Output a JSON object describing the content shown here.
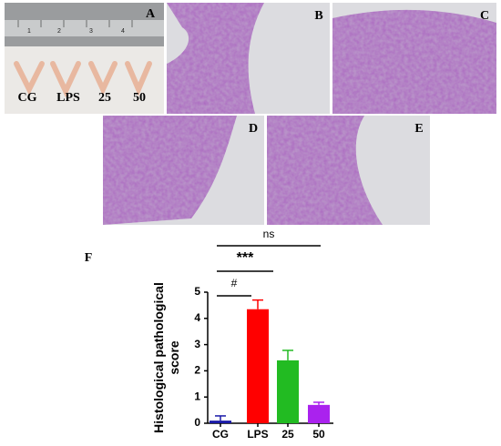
{
  "panels": {
    "labels": [
      "A",
      "B",
      "C",
      "D",
      "E"
    ],
    "sample_labels": [
      "CG",
      "LPS",
      "25",
      "50"
    ],
    "ruler_labels": [
      "1",
      "2",
      "3",
      "4"
    ],
    "chart_label": "F"
  },
  "chart_data": {
    "type": "bar",
    "ylabel": [
      "Histological pathological",
      "score"
    ],
    "categories": [
      "CG",
      "LPS",
      "25",
      "50"
    ],
    "values": [
      0.1,
      4.35,
      2.4,
      0.7
    ],
    "errors": [
      0.18,
      0.35,
      0.38,
      0.1
    ],
    "colors": [
      "#1a1aa8",
      "#ff0000",
      "#22bb22",
      "#aa22ee"
    ],
    "ylim": [
      0,
      5
    ],
    "yticks": [
      0,
      1,
      2,
      3,
      4,
      5
    ],
    "annotations": [
      "ns",
      "***",
      "#"
    ]
  }
}
